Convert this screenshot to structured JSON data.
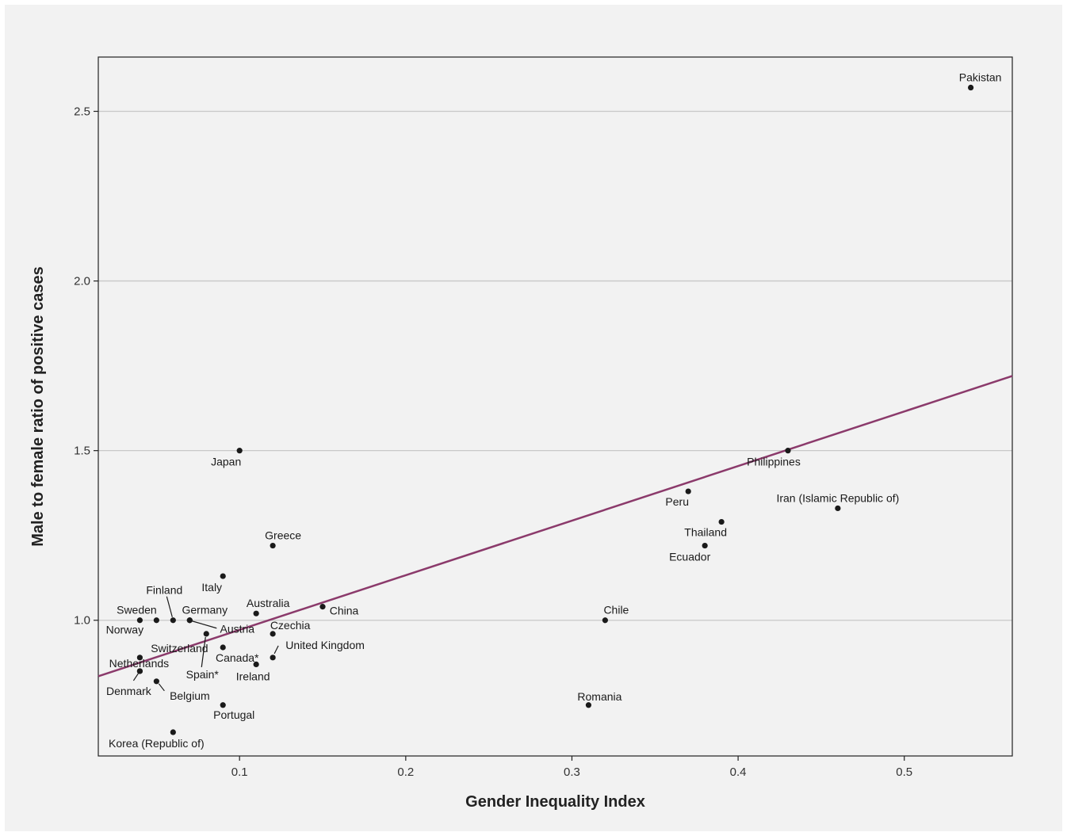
{
  "chart_data": {
    "type": "scatter",
    "xlabel": "Gender Inequality Index",
    "ylabel": "Male to female ratio of positive cases",
    "xlim": [
      0.015,
      0.565
    ],
    "ylim": [
      0.6,
      2.66
    ],
    "x_ticks": [
      "0.1",
      "0.2",
      "0.3",
      "0.4",
      "0.5"
    ],
    "y_ticks": [
      "1.0",
      "1.5",
      "2.0",
      "2.5"
    ],
    "grid": "horizontal",
    "colors": {
      "points": "#1a1a1a",
      "trend": "#8b3a6b",
      "grid": "#c8c8c8",
      "background": "#f2f2f2"
    },
    "trend_line": {
      "x": [
        0.015,
        0.565
      ],
      "y": [
        0.835,
        1.72
      ]
    },
    "points": [
      {
        "label": "Pakistan",
        "x": 0.54,
        "y": 2.57
      },
      {
        "label": "Philippines",
        "x": 0.43,
        "y": 1.5
      },
      {
        "label": "Iran (Islamic Republic of)",
        "x": 0.46,
        "y": 1.33
      },
      {
        "label": "Peru",
        "x": 0.37,
        "y": 1.38
      },
      {
        "label": "Thailand",
        "x": 0.39,
        "y": 1.29
      },
      {
        "label": "Ecuador",
        "x": 0.38,
        "y": 1.22
      },
      {
        "label": "Chile",
        "x": 0.32,
        "y": 1.0
      },
      {
        "label": "Romania",
        "x": 0.31,
        "y": 0.75
      },
      {
        "label": "Japan",
        "x": 0.1,
        "y": 1.5
      },
      {
        "label": "Greece",
        "x": 0.12,
        "y": 1.22
      },
      {
        "label": "Italy",
        "x": 0.09,
        "y": 1.13
      },
      {
        "label": "China",
        "x": 0.15,
        "y": 1.04
      },
      {
        "label": "Australia",
        "x": 0.11,
        "y": 1.02
      },
      {
        "label": "Czechia",
        "x": 0.12,
        "y": 0.96
      },
      {
        "label": "United Kingdom",
        "x": 0.12,
        "y": 0.89
      },
      {
        "label": "Ireland",
        "x": 0.11,
        "y": 0.87
      },
      {
        "label": "Canada*",
        "x": 0.09,
        "y": 0.92
      },
      {
        "label": "Austria",
        "x": 0.07,
        "y": 1.0
      },
      {
        "label": "Germany",
        "x": 0.07,
        "y": 1.0
      },
      {
        "label": "Finland",
        "x": 0.06,
        "y": 1.0
      },
      {
        "label": "Sweden",
        "x": 0.04,
        "y": 1.0
      },
      {
        "label": "Norway",
        "x": 0.05,
        "y": 1.0
      },
      {
        "label": "Spain*",
        "x": 0.08,
        "y": 0.96
      },
      {
        "label": "Switzerland",
        "x": 0.04,
        "y": 0.89
      },
      {
        "label": "Netherlands",
        "x": 0.04,
        "y": 0.85
      },
      {
        "label": "Denmark",
        "x": 0.04,
        "y": 0.85
      },
      {
        "label": "Belgium",
        "x": 0.05,
        "y": 0.82
      },
      {
        "label": "Portugal",
        "x": 0.09,
        "y": 0.75
      },
      {
        "label": "Korea (Republic of)",
        "x": 0.06,
        "y": 0.67
      }
    ]
  }
}
